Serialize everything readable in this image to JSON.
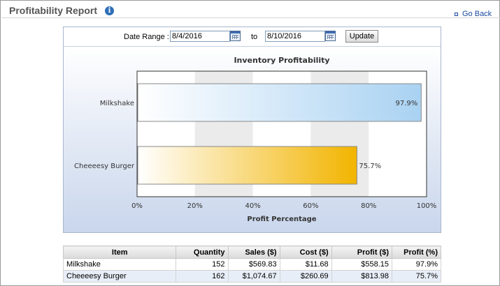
{
  "header": {
    "title": "Profitability Report",
    "info_icon": "info-icon",
    "go_back": "Go Back"
  },
  "date_range": {
    "label": "Date Range :",
    "from": "8/4/2016",
    "to_label": "to",
    "to": "8/10/2016",
    "calendar_icon": "calendar-icon",
    "update_label": "Update"
  },
  "chart_data": {
    "type": "bar",
    "orientation": "horizontal",
    "title": "Inventory Profitability",
    "xlabel": "Profit Percentage",
    "ylabel": "",
    "categories": [
      "Milkshake",
      "Cheeeesy Burger"
    ],
    "values": [
      97.9,
      75.7
    ],
    "value_labels": [
      "97.9%",
      "75.7%"
    ],
    "xlim": [
      0,
      100
    ],
    "ticks": [
      "0%",
      "20%",
      "40%",
      "60%",
      "80%",
      "100%"
    ],
    "grid": "alternating vertical bands",
    "colors": [
      "#a9d2f2",
      "#f2b400"
    ]
  },
  "table": {
    "headers": [
      "Item",
      "Quantity",
      "Sales ($)",
      "Cost ($)",
      "Profit ($)",
      "Profit (%)"
    ],
    "rows": [
      [
        "Milkshake",
        "152",
        "$569.83",
        "$11.68",
        "$558.15",
        "97.9%"
      ],
      [
        "Cheeeesy Burger",
        "162",
        "$1,074.67",
        "$260.69",
        "$813.98",
        "75.7%"
      ]
    ]
  }
}
